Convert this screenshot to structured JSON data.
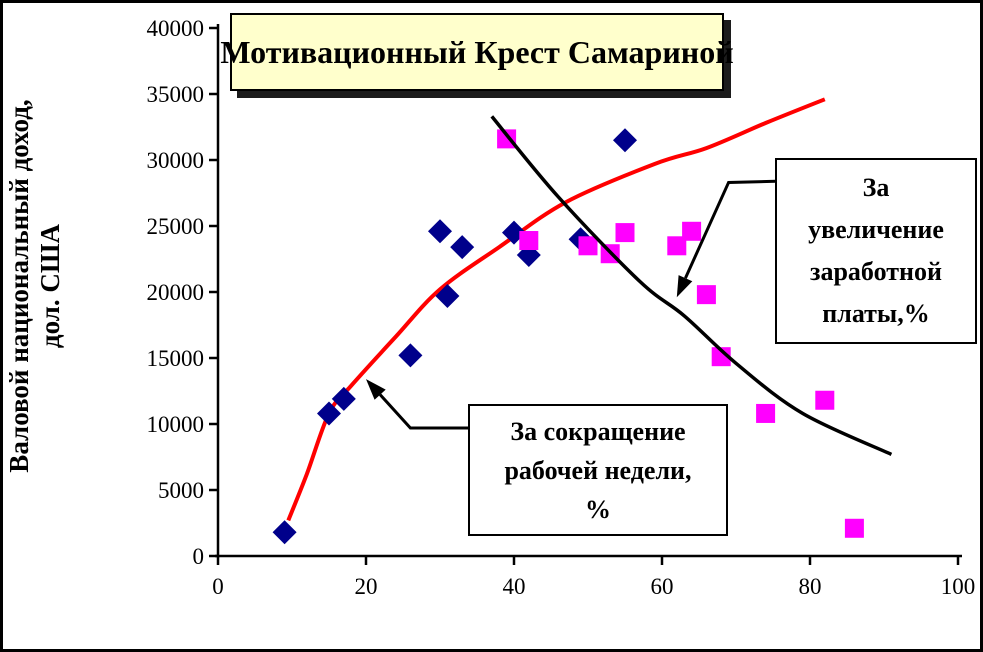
{
  "chart_data": {
    "type": "scatter",
    "title": "Мотивационный Крест Самариной",
    "ylabel_lines": [
      "Валовой национальный доход,",
      "дол. США"
    ],
    "xlabel": "",
    "xlim": [
      0,
      100
    ],
    "ylim": [
      0,
      40000
    ],
    "x_ticks": [
      0,
      20,
      40,
      60,
      80,
      100
    ],
    "y_ticks": [
      0,
      5000,
      10000,
      15000,
      20000,
      25000,
      30000,
      35000,
      40000
    ],
    "grid": false,
    "legend": "none",
    "series": [
      {
        "name": "За сокращение рабочей недели, %",
        "marker": "diamond",
        "color": "#00008B",
        "points": [
          [
            9,
            1800
          ],
          [
            15,
            10800
          ],
          [
            17,
            11900
          ],
          [
            26,
            15200
          ],
          [
            30,
            24600
          ],
          [
            31,
            19700
          ],
          [
            33,
            23400
          ],
          [
            40,
            24500
          ],
          [
            42,
            22800
          ],
          [
            49,
            24000
          ],
          [
            55,
            31500
          ]
        ]
      },
      {
        "name": "За увеличение заработной платы, %",
        "marker": "square",
        "color": "#FF00FF",
        "points": [
          [
            39,
            31600
          ],
          [
            42,
            23900
          ],
          [
            50,
            23500
          ],
          [
            53,
            22900
          ],
          [
            55,
            24500
          ],
          [
            62,
            23500
          ],
          [
            64,
            24600
          ],
          [
            66,
            19800
          ],
          [
            68,
            15100
          ],
          [
            74,
            10800
          ],
          [
            82,
            11800
          ],
          [
            86,
            2100
          ]
        ]
      }
    ],
    "trend_lines": [
      {
        "name": "work-week-reduction-trend",
        "color": "#FF0000",
        "width": 4,
        "points": [
          [
            9.5,
            2700
          ],
          [
            12,
            6200
          ],
          [
            15,
            10800
          ],
          [
            18,
            12900
          ],
          [
            24,
            16600
          ],
          [
            30,
            20200
          ],
          [
            38,
            23400
          ],
          [
            47,
            26800
          ],
          [
            59,
            29700
          ],
          [
            66,
            30900
          ],
          [
            74,
            32800
          ],
          [
            82,
            34600
          ]
        ]
      },
      {
        "name": "wage-increase-trend",
        "color": "#000000",
        "width": 3.5,
        "points": [
          [
            37,
            33300
          ],
          [
            46,
            27200
          ],
          [
            57,
            20800
          ],
          [
            63,
            18200
          ],
          [
            70,
            14600
          ],
          [
            79,
            10800
          ],
          [
            91,
            7700
          ]
        ]
      }
    ],
    "annotations": [
      {
        "lines": [
          "За сокращение",
          "рабочей недели,",
          "%"
        ],
        "arrow": {
          "tail": [
            34,
            9700
          ],
          "elbow": [
            26,
            9700
          ],
          "tip": [
            20,
            13400
          ]
        }
      },
      {
        "lines": [
          "За",
          "увеличение",
          "заработной",
          "платы,%"
        ],
        "arrow": {
          "tail": [
            76,
            28400
          ],
          "elbow": [
            69,
            28300
          ],
          "tip": [
            62,
            19600
          ]
        }
      }
    ],
    "colors": {
      "title_box_fill": "#FFFFCC",
      "axis": "#000000",
      "background": "#FFFFFF",
      "diamond": "#00008B",
      "square": "#FF00FF",
      "red_line": "#FF0000",
      "black_line": "#000000"
    }
  }
}
